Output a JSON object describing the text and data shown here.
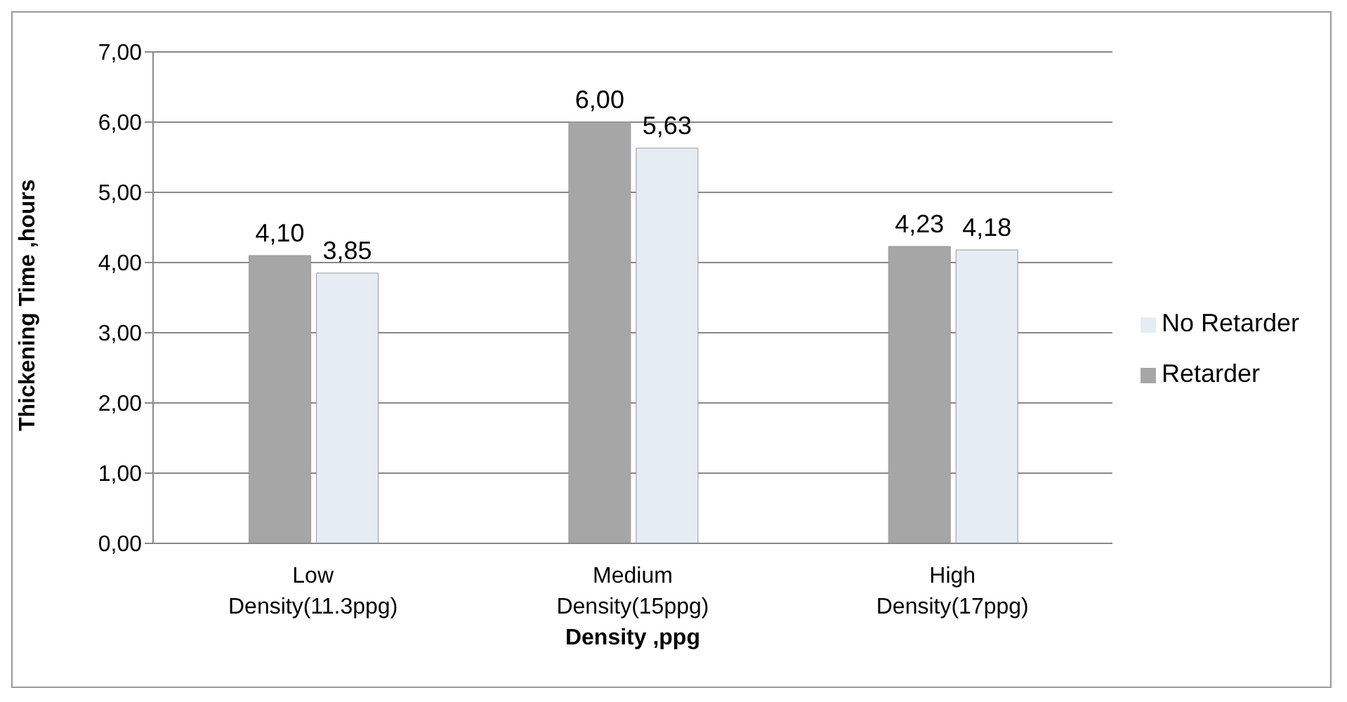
{
  "chart_data": {
    "type": "bar",
    "xlabel": "Density ,ppg",
    "ylabel": "Thickening Time ,hours",
    "categories": [
      "Low Density(11.3ppg)",
      "Medium Density(15ppg)",
      "High Density(17ppg)"
    ],
    "series": [
      {
        "name": "Retarder",
        "color": "#a6a6a6",
        "values": [
          4.1,
          6.0,
          4.23
        ],
        "value_labels": [
          "4,10",
          "6,00",
          "4,23"
        ]
      },
      {
        "name": "No Retarder",
        "color": "#e6ecf4",
        "values": [
          3.85,
          5.63,
          4.18
        ],
        "value_labels": [
          "3,85",
          "5,63",
          "4,18"
        ]
      }
    ],
    "ylim": [
      0,
      7
    ],
    "yticks": [
      {
        "value": 0,
        "label": "0,00"
      },
      {
        "value": 1,
        "label": "1,00"
      },
      {
        "value": 2,
        "label": "2,00"
      },
      {
        "value": 3,
        "label": "3,00"
      },
      {
        "value": 4,
        "label": "4,00"
      },
      {
        "value": 5,
        "label": "5,00"
      },
      {
        "value": 6,
        "label": "6,00"
      },
      {
        "value": 7,
        "label": "7,00"
      }
    ],
    "grid": "y",
    "legend": "right"
  }
}
